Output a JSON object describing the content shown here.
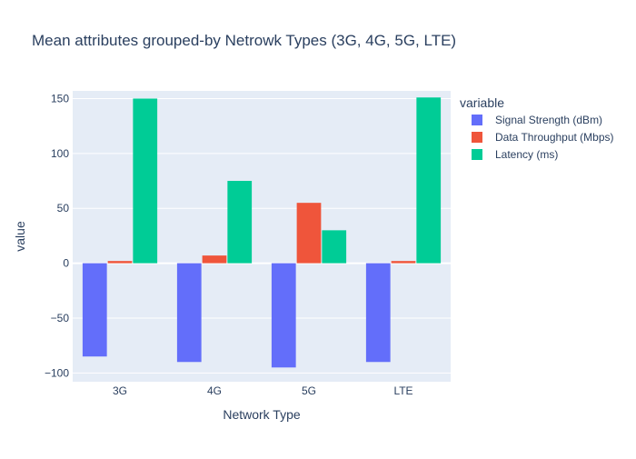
{
  "chart_data": {
    "type": "bar",
    "title": "Mean attributes grouped-by Netrowk Types (3G, 4G, 5G, LTE)",
    "xlabel": "Network Type",
    "ylabel": "value",
    "categories": [
      "3G",
      "4G",
      "5G",
      "LTE"
    ],
    "ylim": [
      -108,
      157
    ],
    "yticks": [
      -100,
      -50,
      0,
      50,
      100,
      150
    ],
    "ytick_labels": [
      "−100",
      "−50",
      "0",
      "50",
      "100",
      "150"
    ],
    "grid": true,
    "legend": {
      "title": "variable",
      "position": "right"
    },
    "series": [
      {
        "name": "Signal Strength (dBm)",
        "color": "#636efa",
        "values": [
          -85,
          -90,
          -95,
          -90
        ]
      },
      {
        "name": "Data Throughput (Mbps)",
        "color": "#ef553b",
        "values": [
          2,
          7,
          55,
          2
        ]
      },
      {
        "name": "Latency (ms)",
        "color": "#00cc96",
        "values": [
          150,
          75,
          30,
          151
        ]
      }
    ],
    "background_color": "#e5ecf6"
  }
}
